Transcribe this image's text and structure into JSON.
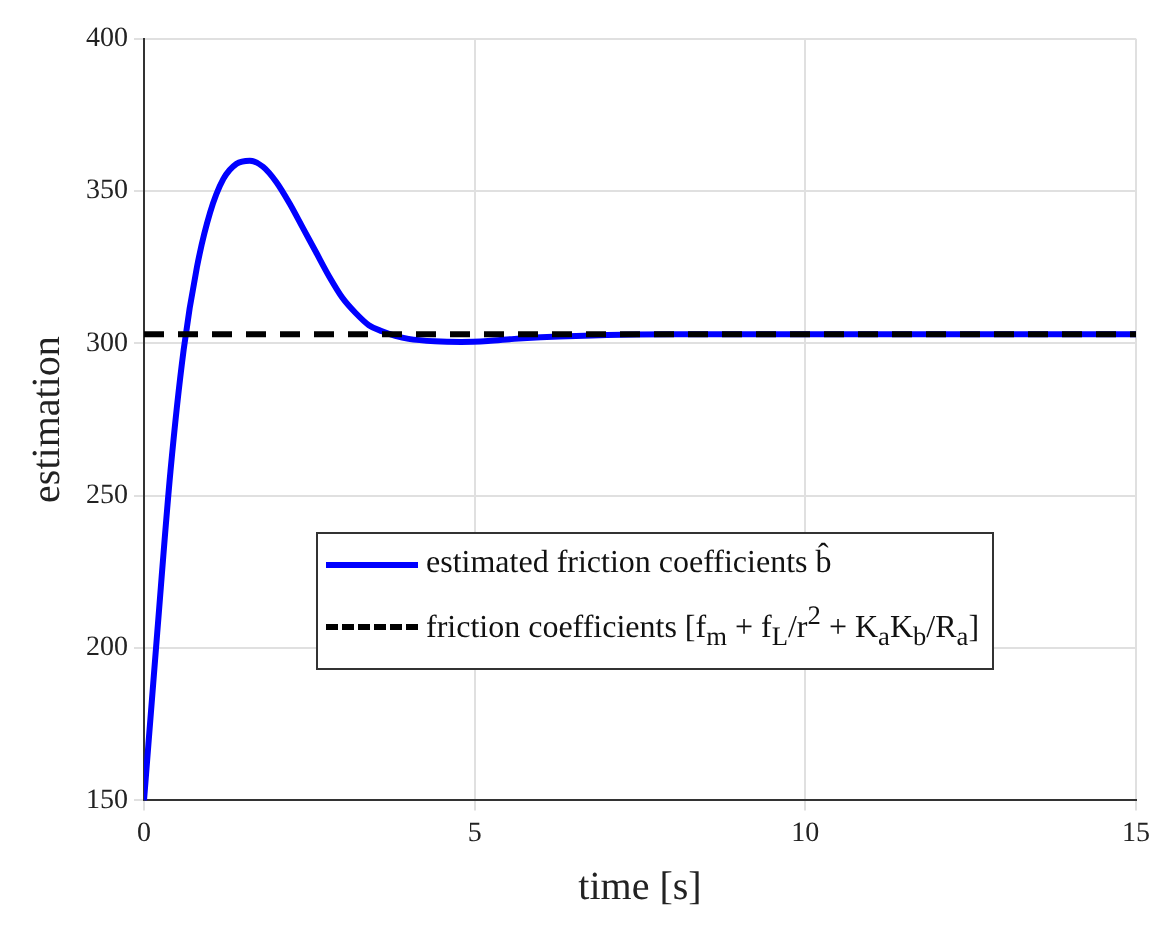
{
  "chart_data": {
    "type": "line",
    "xlabel": "time [s]",
    "ylabel": "estimation",
    "xlim": [
      0,
      15
    ],
    "xticks": [
      0,
      5,
      10,
      15
    ],
    "ylim": [
      150,
      400
    ],
    "yticks": [
      150,
      200,
      250,
      300,
      350,
      400
    ],
    "grid": true,
    "legend": "center",
    "marker": "none",
    "series": [
      {
        "name": "estimated friction coefficients b̂",
        "color": "#0000ff",
        "line_style": "solid",
        "x": [
          0,
          0.2,
          0.4,
          0.6,
          0.8,
          1.0,
          1.2,
          1.4,
          1.6,
          1.8,
          2.0,
          2.2,
          2.4,
          2.6,
          2.8,
          3.0,
          3.2,
          3.4,
          3.6,
          3.8,
          4.0,
          4.4,
          4.8,
          5.2,
          5.6,
          6,
          7,
          8,
          10,
          15
        ],
        "values": [
          150,
          205,
          258,
          298,
          325,
          343,
          354,
          359,
          360,
          358,
          353,
          346,
          338,
          330,
          322,
          315,
          310,
          306,
          304,
          302.5,
          301.5,
          300.7,
          300.5,
          300.8,
          301.5,
          302,
          302.8,
          303,
          303,
          303
        ]
      },
      {
        "name": "friction coefficients [f$_{m}$ + f$_{L}$/r$^{2}$ + K$_{a}$K$_{b}$/R$_{a}$]",
        "color": "#000000",
        "line_style": "dashed",
        "x": [
          0,
          15
        ],
        "values": [
          303,
          303
        ]
      }
    ]
  }
}
